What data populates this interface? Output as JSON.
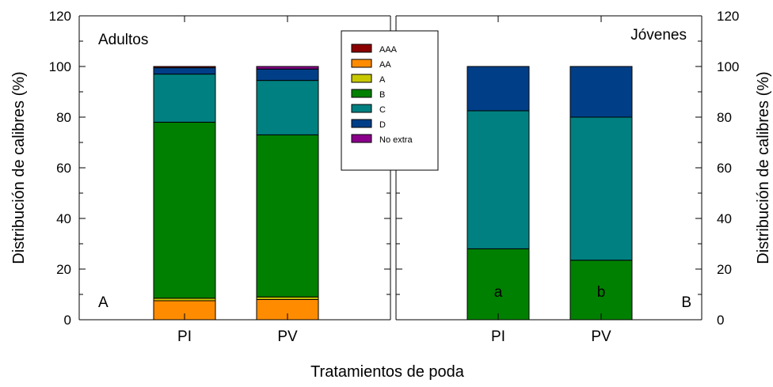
{
  "chart_data": {
    "type": "bar",
    "stacked": true,
    "xlabel": "Tratamientos de poda",
    "ylabel": "Distribución de calibres (%)",
    "ylim": [
      0,
      120
    ],
    "yticks": [
      "0",
      "20",
      "40",
      "60",
      "80",
      "100",
      "120"
    ],
    "legend": {
      "placement": "top-center",
      "entries": [
        {
          "name": "AAA",
          "color": "#8b0000"
        },
        {
          "name": "AA",
          "color": "#ff8c00"
        },
        {
          "name": "A",
          "color": "#c8c800"
        },
        {
          "name": "B",
          "color": "#008000"
        },
        {
          "name": "C",
          "color": "#008080"
        },
        {
          "name": "D",
          "color": "#003f87"
        },
        {
          "name": "No extra",
          "color": "#8b008b"
        }
      ]
    },
    "panels": [
      {
        "title": "Adultos",
        "panel_letter": "A",
        "categories": [
          "PI",
          "PV"
        ],
        "series": [
          {
            "name": "AA",
            "values": [
              7.5,
              8.0
            ]
          },
          {
            "name": "A",
            "values": [
              1.0,
              1.0
            ]
          },
          {
            "name": "B",
            "values": [
              69.5,
              64.0
            ]
          },
          {
            "name": "C",
            "values": [
              19.0,
              21.5
            ]
          },
          {
            "name": "D",
            "values": [
              2.5,
              4.5
            ]
          },
          {
            "name": "AAA",
            "values": [
              0.5,
              0.0
            ]
          },
          {
            "name": "No extra",
            "values": [
              0.0,
              1.0
            ]
          }
        ],
        "bar_labels": [
          "",
          ""
        ]
      },
      {
        "title": "Jóvenes",
        "panel_letter": "B",
        "categories": [
          "PI",
          "PV"
        ],
        "series": [
          {
            "name": "B",
            "values": [
              28.0,
              23.5
            ]
          },
          {
            "name": "C",
            "values": [
              54.5,
              56.5
            ]
          },
          {
            "name": "D",
            "values": [
              17.5,
              20.0
            ]
          }
        ],
        "bar_labels": [
          "a",
          "b"
        ]
      }
    ]
  }
}
